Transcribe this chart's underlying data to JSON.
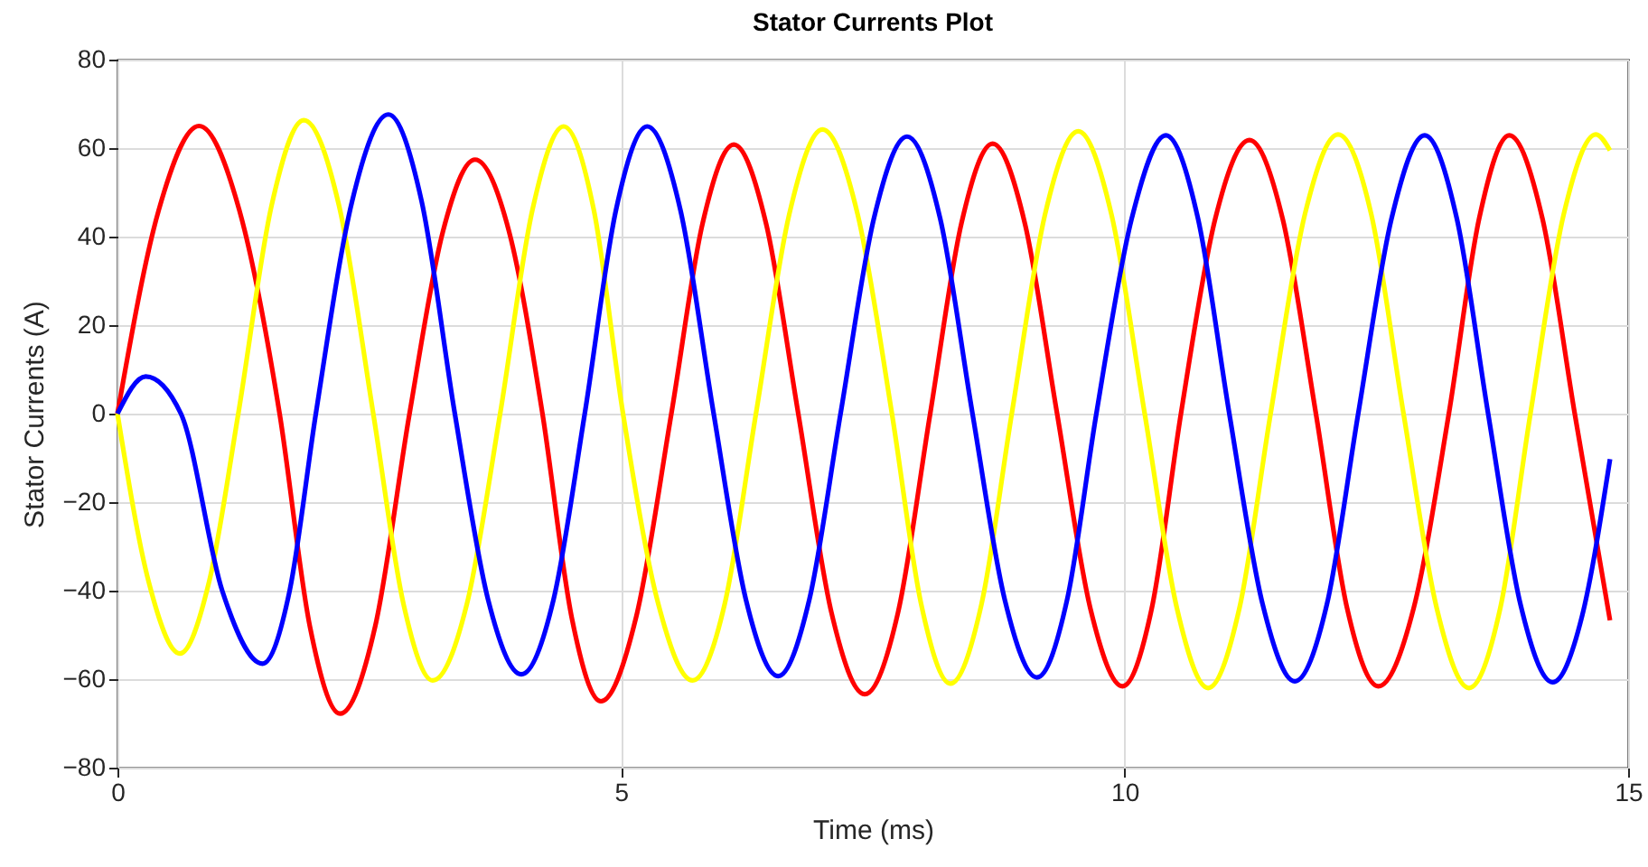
{
  "chart_data": {
    "type": "line",
    "title": "Stator Currents Plot",
    "xlabel": "Time (ms)",
    "ylabel": "Stator Currents (A)",
    "xlim": [
      0,
      15
    ],
    "xticks": [
      0,
      5,
      10,
      15
    ],
    "ylim": [
      -80,
      80
    ],
    "yticks": [
      -80,
      -60,
      -40,
      -20,
      0,
      20,
      40,
      60,
      80
    ],
    "grid": true,
    "marker": "none",
    "line_style": "solid",
    "series": [
      {
        "color": "#ff0000",
        "x": [
          0,
          0.41,
          0.81,
          1.21,
          1.61,
          1.91,
          2.21,
          2.56,
          2.9,
          3.23,
          3.55,
          3.89,
          4.22,
          4.51,
          4.8,
          5.15,
          5.5,
          5.81,
          6.12,
          6.44,
          6.76,
          7.09,
          7.42,
          7.75,
          8.07,
          8.38,
          8.69,
          9.01,
          9.33,
          9.66,
          9.98,
          10.27,
          10.56,
          10.9,
          11.24,
          11.57,
          11.9,
          12.21,
          12.52,
          12.87,
          13.22,
          13.52,
          13.82,
          14.15,
          14.47,
          14.82
        ],
        "values": [
          0,
          46,
          65,
          46,
          0,
          -48,
          -67.8,
          -48,
          0,
          41,
          57.4,
          41,
          0,
          -46,
          -65,
          -46,
          0,
          43,
          60.8,
          43,
          0,
          -45,
          -63.4,
          -45,
          0,
          43,
          61,
          43,
          0,
          -44,
          -61.6,
          -44,
          0,
          44,
          61.8,
          44,
          0,
          -44,
          -61.6,
          -44,
          0,
          44,
          62.9,
          44,
          0,
          -46.7
        ]
      },
      {
        "color": "#ffff00",
        "x": [
          0,
          0.31,
          0.62,
          0.91,
          1.2,
          1.53,
          1.85,
          2.2,
          2.54,
          2.84,
          3.13,
          3.47,
          3.8,
          4.12,
          4.43,
          4.73,
          5.02,
          5.37,
          5.71,
          6.03,
          6.34,
          6.67,
          7,
          7.35,
          7.69,
          7.98,
          8.27,
          8.58,
          8.88,
          9.21,
          9.54,
          9.87,
          10.2,
          10.52,
          10.83,
          11.14,
          11.45,
          11.79,
          12.12,
          12.45,
          12.77,
          13.1,
          13.42,
          13.73,
          14.03,
          14.36,
          14.68,
          14.82
        ],
        "values": [
          0,
          -38,
          -54.2,
          -38,
          0,
          47,
          66.3,
          47,
          0,
          -43,
          -60.3,
          -43,
          0,
          46,
          64.9,
          46,
          0,
          -43,
          -60.3,
          -43,
          0,
          45,
          64.2,
          45,
          0,
          -43,
          -61,
          -43,
          0,
          45,
          63.8,
          45,
          0,
          -44,
          -62,
          -44,
          0,
          45,
          63.1,
          45,
          0,
          -44,
          -62,
          -44,
          0,
          45,
          63.1,
          59.5
        ]
      },
      {
        "color": "#0000ff",
        "x": [
          0,
          0.28,
          0.63,
          1.04,
          1.44,
          1.71,
          1.97,
          2.33,
          2.69,
          3.02,
          3.35,
          3.68,
          4.01,
          4.33,
          4.64,
          4.95,
          5.26,
          5.59,
          5.92,
          6.24,
          6.56,
          6.87,
          7.18,
          7.51,
          7.84,
          8.17,
          8.49,
          8.81,
          9.13,
          9.43,
          9.72,
          10.07,
          10.41,
          10.73,
          11.04,
          11.37,
          11.69,
          12.01,
          12.32,
          12.65,
          12.98,
          13.3,
          13.61,
          13.93,
          14.25,
          14.54,
          14.82
        ],
        "values": [
          0,
          8.4,
          0,
          -40,
          -56.5,
          -40,
          0,
          48,
          67.6,
          48,
          0,
          -42,
          -58.9,
          -42,
          0,
          46,
          64.9,
          46,
          0,
          -42,
          -59.3,
          -42,
          0,
          44,
          62.6,
          44,
          0,
          -42,
          -59.6,
          -42,
          0,
          44,
          62.9,
          44,
          0,
          -43,
          -60.5,
          -43,
          0,
          44,
          62.9,
          44,
          0,
          -43,
          -60.7,
          -46,
          -10.3
        ]
      }
    ]
  }
}
